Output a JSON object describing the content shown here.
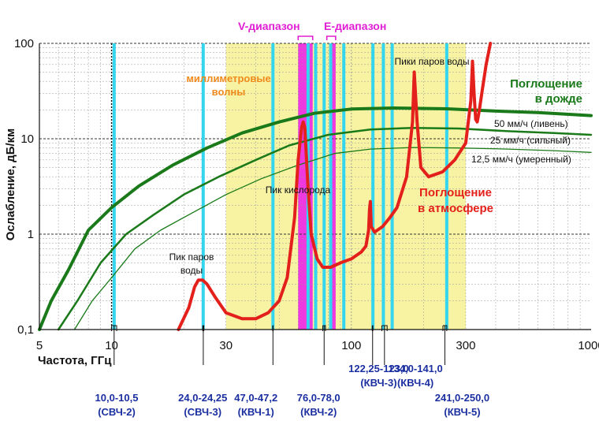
{
  "chart_data": {
    "type": "line",
    "xscale": "log",
    "yscale": "log",
    "xlim": [
      5,
      1000
    ],
    "ylim": [
      0.1,
      100
    ],
    "xlabel": "Частота, ГГц",
    "ylabel": "Ослабление, дБ/км",
    "x_ticks": [
      {
        "value": 5,
        "label": "5"
      },
      {
        "value": 10,
        "label": "10"
      },
      {
        "value": 30,
        "label": "30"
      },
      {
        "value": 100,
        "label": "100"
      },
      {
        "value": 300,
        "label": "300"
      },
      {
        "value": 1000,
        "label": "1000"
      }
    ],
    "y_ticks": [
      {
        "value": 0.1,
        "label": "0,1"
      },
      {
        "value": 1,
        "label": "1"
      },
      {
        "value": 10,
        "label": "10"
      },
      {
        "value": 100,
        "label": "100"
      }
    ],
    "grid": true,
    "regions": [
      {
        "name": "millimeter",
        "from": 30,
        "to": 300,
        "color": "#f7f3a2"
      },
      {
        "name": "V",
        "from": 60,
        "to": 69,
        "color": "#ee38e0"
      },
      {
        "name": "E",
        "from": 81,
        "to": 86,
        "color": "#ee38e0"
      }
    ],
    "cyan_lines": [
      10.25,
      24.1,
      47.1,
      66,
      71,
      77,
      82,
      93,
      123,
      136,
      148,
      250
    ],
    "series": [
      {
        "name": "50 мм/ч (ливень)",
        "color": "#1a7a1a",
        "width": 4,
        "x": [
          5,
          5.6,
          6.6,
          8,
          10,
          13,
          18,
          25,
          35,
          50,
          70,
          100,
          150,
          250,
          400,
          600,
          1000
        ],
        "y": [
          0.1,
          0.2,
          0.42,
          1.1,
          1.9,
          3.2,
          5.3,
          8.0,
          11.5,
          15.0,
          18.5,
          20.5,
          21.0,
          20.6,
          19.5,
          18.8,
          17.5
        ]
      },
      {
        "name": "25 мм/ч (сильный)",
        "color": "#1a7a1a",
        "width": 2.5,
        "x": [
          6,
          7.2,
          9,
          11.5,
          15,
          20,
          28,
          40,
          55,
          80,
          120,
          180,
          280,
          450,
          700,
          1000
        ],
        "y": [
          0.1,
          0.2,
          0.5,
          1.0,
          1.6,
          2.6,
          4.0,
          6.0,
          8.5,
          11.0,
          12.5,
          13.0,
          12.8,
          12.0,
          11.5,
          11.0
        ]
      },
      {
        "name": "12,5 мм/ч (умеренный)",
        "color": "#1a7a1a",
        "width": 1.3,
        "x": [
          7,
          8.3,
          10,
          12.5,
          16,
          22,
          30,
          42,
          60,
          85,
          120,
          180,
          280,
          450,
          700,
          1000
        ],
        "y": [
          0.1,
          0.2,
          0.35,
          0.7,
          1.1,
          1.7,
          2.6,
          3.8,
          5.3,
          7.0,
          7.8,
          8.1,
          8.0,
          7.8,
          7.5,
          7.2
        ]
      },
      {
        "name": "Поглощение в атмосфере",
        "color": "#e3201b",
        "width": 4,
        "x": [
          19,
          21,
          22.2,
          23,
          24,
          25,
          27,
          30,
          35,
          40,
          45,
          50,
          54,
          58,
          60,
          62,
          63,
          64,
          66,
          68,
          72,
          76,
          82,
          90,
          100,
          110,
          115,
          118,
          119,
          120,
          121,
          125,
          135,
          145,
          155,
          170,
          180,
          183,
          188,
          195,
          210,
          240,
          270,
          300,
          315,
          320,
          325,
          330,
          335,
          342,
          350,
          365,
          380
        ],
        "y": [
          0.1,
          0.17,
          0.28,
          0.33,
          0.33,
          0.3,
          0.22,
          0.15,
          0.13,
          0.13,
          0.15,
          0.2,
          0.35,
          1.5,
          6,
          13,
          15,
          13,
          3,
          1.0,
          0.55,
          0.45,
          0.45,
          0.5,
          0.55,
          0.65,
          0.75,
          1.1,
          1.8,
          2.2,
          1.2,
          1.05,
          1.2,
          1.5,
          1.9,
          4,
          15,
          50,
          15,
          5,
          4,
          4.5,
          6,
          9,
          25,
          65,
          30,
          16,
          15,
          20,
          30,
          60,
          100
        ]
      }
    ],
    "annotations": {
      "v_band": "V-диапазон",
      "e_band": "E-диапазон",
      "mm_waves_1": "миллиметровые",
      "mm_waves_2": "волны",
      "rain_1": "Поглощение",
      "rain_2": "в дожде",
      "atm_1": "Поглощение",
      "atm_2": "в атмосфере",
      "water_peaks": "Пики паров воды",
      "oxygen_peak": "Пик кислорода",
      "water_peak_1": "Пик паров",
      "water_peak_2": "воды",
      "rain_50": "50 мм/ч (ливень)",
      "rain_25": "25 мм/ч (сильный)",
      "rain_12": "12,5 мм/ч (умеренный)"
    },
    "bands": [
      {
        "range": "10,0-10,5",
        "name": "(СВЧ-2)",
        "from": 10,
        "to": 10.5,
        "label_x": 10.5
      },
      {
        "range": "24,0-24,25",
        "name": "(СВЧ-3)",
        "from": 24,
        "to": 24.25,
        "label_x": 24
      },
      {
        "range": "47,0-47,2",
        "name": "(КВЧ-1)",
        "from": 47,
        "to": 47.2,
        "label_x": 40
      },
      {
        "range": "76,0-78,0",
        "name": "(КВЧ-2)",
        "from": 76,
        "to": 78,
        "label_x": 73
      },
      {
        "range": "122,25-123,0",
        "name": "(КВЧ-3)",
        "from": 122.25,
        "to": 123,
        "label_x": 130
      },
      {
        "range": "134,0-141,0",
        "name": "(КВЧ-4)",
        "from": 134,
        "to": 141,
        "label_x": 185
      },
      {
        "range": "241,0-250,0",
        "name": "(КВЧ-5)",
        "from": 241,
        "to": 250,
        "label_x": 290
      }
    ]
  }
}
